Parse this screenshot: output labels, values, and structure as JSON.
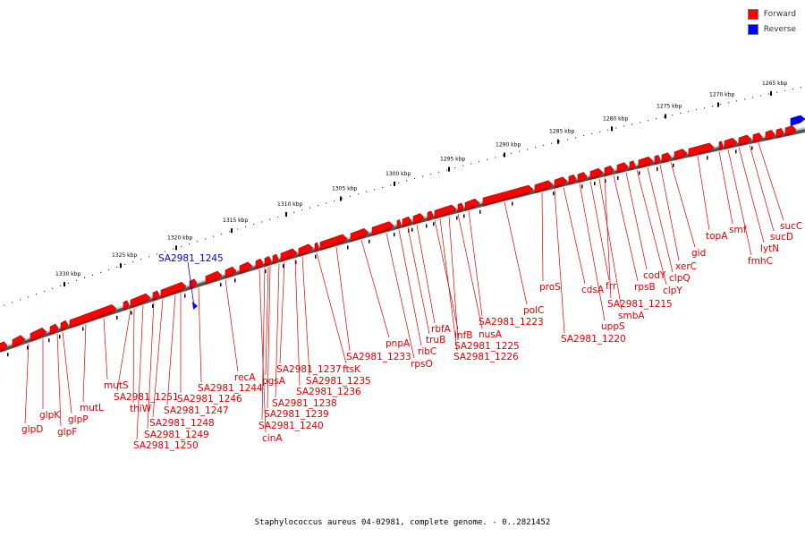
{
  "colors": {
    "forward": "#ff0000",
    "forward_dark": "#aa0000",
    "reverse": "#0000ff",
    "label_forward": "#dd0000",
    "label_reverse": "#0000dd",
    "backbone": "#999999"
  },
  "legend": [
    {
      "label": "Forward",
      "color": "#ff0000"
    },
    {
      "label": "Reverse",
      "color": "#0000ff"
    }
  ],
  "caption": "Staphylococcus aureus 04-02981, complete genome. - 0..2821452",
  "scale_labels": [
    "1330 kbp",
    "1325 kbp",
    "1320 kbp",
    "1315 kbp",
    "1310 kbp",
    "1305 kbp",
    "1300 kbp",
    "1295 kbp",
    "1290 kbp",
    "1285 kbp",
    "1280 kbp",
    "1275 kbp",
    "1270 kbp",
    "1265 kbp"
  ],
  "gene_labels": [
    {
      "text": "glpD",
      "strand": "forward"
    },
    {
      "text": "glpK",
      "strand": "forward"
    },
    {
      "text": "glpF",
      "strand": "forward"
    },
    {
      "text": "glpP",
      "strand": "forward"
    },
    {
      "text": "mutL",
      "strand": "forward"
    },
    {
      "text": "mutS",
      "strand": "forward"
    },
    {
      "text": "SA2981_1251",
      "strand": "forward"
    },
    {
      "text": "thiW",
      "strand": "forward"
    },
    {
      "text": "SA2981_1250",
      "strand": "forward"
    },
    {
      "text": "SA2981_1249",
      "strand": "forward"
    },
    {
      "text": "SA2981_1248",
      "strand": "forward"
    },
    {
      "text": "SA2981_1247",
      "strand": "forward"
    },
    {
      "text": "SA2981_1246",
      "strand": "forward"
    },
    {
      "text": "SA2981_1244",
      "strand": "forward"
    },
    {
      "text": "recA",
      "strand": "forward"
    },
    {
      "text": "cinA",
      "strand": "forward"
    },
    {
      "text": "SA2981_1240",
      "strand": "forward"
    },
    {
      "text": "SA2981_1239",
      "strand": "forward"
    },
    {
      "text": "pgsA",
      "strand": "forward"
    },
    {
      "text": "SA2981_1238",
      "strand": "forward"
    },
    {
      "text": "SA2981_1237",
      "strand": "forward"
    },
    {
      "text": "SA2981_1236",
      "strand": "forward"
    },
    {
      "text": "SA2981_1235",
      "strand": "forward"
    },
    {
      "text": "ftsK",
      "strand": "forward"
    },
    {
      "text": "SA2981_1233",
      "strand": "forward"
    },
    {
      "text": "pnpA",
      "strand": "forward"
    },
    {
      "text": "rpsO",
      "strand": "forward"
    },
    {
      "text": "ribC",
      "strand": "forward"
    },
    {
      "text": "truB",
      "strand": "forward"
    },
    {
      "text": "rbfA",
      "strand": "forward"
    },
    {
      "text": "infB",
      "strand": "forward"
    },
    {
      "text": "SA2981_1226",
      "strand": "forward"
    },
    {
      "text": "SA2981_1225",
      "strand": "forward"
    },
    {
      "text": "nusA",
      "strand": "forward"
    },
    {
      "text": "SA2981_1223",
      "strand": "forward"
    },
    {
      "text": "polC",
      "strand": "forward"
    },
    {
      "text": "proS",
      "strand": "forward"
    },
    {
      "text": "SA2981_1220",
      "strand": "forward"
    },
    {
      "text": "cdsA",
      "strand": "forward"
    },
    {
      "text": "uppS",
      "strand": "forward"
    },
    {
      "text": "frr",
      "strand": "forward"
    },
    {
      "text": "smbA",
      "strand": "forward"
    },
    {
      "text": "SA2981_1215",
      "strand": "forward"
    },
    {
      "text": "rpsB",
      "strand": "forward"
    },
    {
      "text": "codY",
      "strand": "forward"
    },
    {
      "text": "clpY",
      "strand": "forward"
    },
    {
      "text": "clpQ",
      "strand": "forward"
    },
    {
      "text": "xerC",
      "strand": "forward"
    },
    {
      "text": "gid",
      "strand": "forward"
    },
    {
      "text": "topA",
      "strand": "forward"
    },
    {
      "text": "smf",
      "strand": "forward"
    },
    {
      "text": "fmhC",
      "strand": "forward"
    },
    {
      "text": "lytN",
      "strand": "forward"
    },
    {
      "text": "sucD",
      "strand": "forward"
    },
    {
      "text": "sucC",
      "strand": "forward"
    },
    {
      "text": "SA2981_1245",
      "strand": "reverse"
    }
  ]
}
